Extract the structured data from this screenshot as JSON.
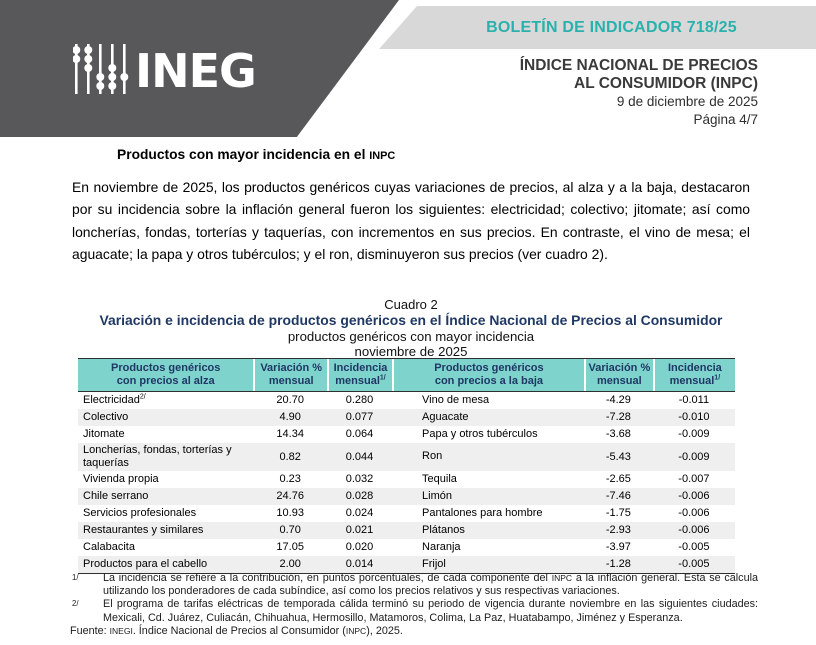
{
  "banner": {
    "logo_alt": "INEGI",
    "bulletin": "BOLETÍN DE INDICADOR 718/25",
    "doc_title_line1": "ÍNDICE NACIONAL DE PRECIOS",
    "doc_title_line2": "AL CONSUMIDOR (INPC)",
    "doc_date": "9 de diciembre de 2025",
    "doc_page": "Página 4/7"
  },
  "section": {
    "heading": "Productos con mayor incidencia en el INPC",
    "paragraph": "En noviembre de 2025, los productos genéricos cuyas variaciones de precios, al alza y a la baja, destacaron por su incidencia sobre la inflación general fueron los siguientes: electricidad; colectivo; jitomate; así como loncherías, fondas, torterías y taquerías, con incrementos en sus precios. En contraste, el vino de mesa; el aguacate; la papa y otros tubérculos; y el ron, disminuyeron sus precios (ver cuadro 2)."
  },
  "cuadro": {
    "label": "Cuadro 2",
    "title": "Variación e incidencia de productos genéricos en el Índice Nacional de Precios al Consumidor",
    "subtitle1": "productos genéricos con mayor incidencia",
    "subtitle2": "noviembre de 2025"
  },
  "table": {
    "columns": [
      {
        "line1": "Productos genéricos",
        "line2": "con precios al alza",
        "sup": ""
      },
      {
        "line1": "Variación %",
        "line2": "mensual",
        "sup": ""
      },
      {
        "line1": "Incidencia",
        "line2": "mensual",
        "sup": "1/"
      },
      {
        "line1": "Productos genéricos",
        "line2": "con precios a la baja",
        "sup": ""
      },
      {
        "line1": "Variación %",
        "line2": "mensual",
        "sup": ""
      },
      {
        "line1": "Incidencia",
        "line2": "mensual",
        "sup": "1/"
      }
    ],
    "rows": [
      {
        "alza": "Electricidad",
        "alza_sup": "2/",
        "alza_var": "20.70",
        "alza_inc": "0.280",
        "baja": "Vino de mesa",
        "baja_var": "-4.29",
        "baja_inc": "-0.011",
        "tall": false
      },
      {
        "alza": "Colectivo",
        "alza_sup": "",
        "alza_var": "4.90",
        "alza_inc": "0.077",
        "baja": "Aguacate",
        "baja_var": "-7.28",
        "baja_inc": "-0.010",
        "tall": false
      },
      {
        "alza": "Jitomate",
        "alza_sup": "",
        "alza_var": "14.34",
        "alza_inc": "0.064",
        "baja": "Papa y otros tubérculos",
        "baja_var": "-3.68",
        "baja_inc": "-0.009",
        "tall": false
      },
      {
        "alza": "Loncherías, fondas, torterías y taquerías",
        "alza_sup": "",
        "alza_var": "0.82",
        "alza_inc": "0.044",
        "baja": "Ron",
        "baja_var": "-5.43",
        "baja_inc": "-0.009",
        "tall": true
      },
      {
        "alza": "Vivienda propia",
        "alza_sup": "",
        "alza_var": "0.23",
        "alza_inc": "0.032",
        "baja": "Tequila",
        "baja_var": "-2.65",
        "baja_inc": "-0.007",
        "tall": false
      },
      {
        "alza": "Chile serrano",
        "alza_sup": "",
        "alza_var": "24.76",
        "alza_inc": "0.028",
        "baja": "Limón",
        "baja_var": "-7.46",
        "baja_inc": "-0.006",
        "tall": false
      },
      {
        "alza": "Servicios profesionales",
        "alza_sup": "",
        "alza_var": "10.93",
        "alza_inc": "0.024",
        "baja": "Pantalones para hombre",
        "baja_var": "-1.75",
        "baja_inc": "-0.006",
        "tall": false
      },
      {
        "alza": "Restaurantes y similares",
        "alza_sup": "",
        "alza_var": "0.70",
        "alza_inc": "0.021",
        "baja": "Plátanos",
        "baja_var": "-2.93",
        "baja_inc": "-0.006",
        "tall": false
      },
      {
        "alza": "Calabacita",
        "alza_sup": "",
        "alza_var": "17.05",
        "alza_inc": "0.020",
        "baja": "Naranja",
        "baja_var": "-3.97",
        "baja_inc": "-0.005",
        "tall": false
      },
      {
        "alza": "Productos para el cabello",
        "alza_sup": "",
        "alza_var": "2.00",
        "alza_inc": "0.014",
        "baja": "Frijol",
        "baja_var": "-1.28",
        "baja_inc": "-0.005",
        "tall": false
      }
    ]
  },
  "footnotes": [
    {
      "marker": "1/",
      "text": "La incidencia se refiere a la contribución, en puntos porcentuales, de cada componente del INPC a la inflación general. Esta se calcula utilizando los ponderadores de cada subíndice, así como los precios relativos y sus respectivas variaciones."
    },
    {
      "marker": "2/",
      "text": "El programa de tarifas eléctricas de temporada cálida terminó su periodo de vigencia durante noviembre en las siguientes ciudades: Mexicali, Cd. Juárez, Culiacán, Chihuahua, Hermosillo, Matamoros, Colima, La Paz, Huatabampo, Jiménez y Esperanza."
    }
  ],
  "source_line": "Fuente: INEGI. Índice Nacional de Precios al Consumidor (INPC), 2025.",
  "colors": {
    "banner_dark": "#58575A",
    "banner_light": "#D8D8D8",
    "accent_teal": "#29B2AD",
    "table_header_bg": "#7ED3CD",
    "navy_text": "#1F3864",
    "row_alt": "#EFEFEF"
  }
}
